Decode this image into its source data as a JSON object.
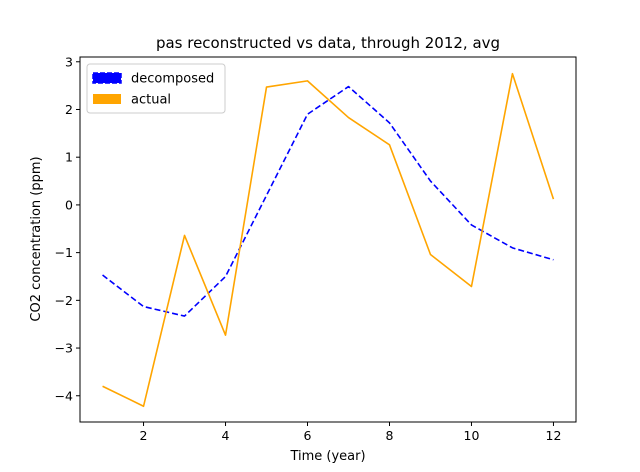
{
  "chart_data": {
    "type": "line",
    "title": "pas reconstructed vs data, through 2012, avg",
    "xlabel": "Time (year)",
    "ylabel": "CO2 concentration (ppm)",
    "xlim": [
      0.45,
      12.55
    ],
    "ylim": [
      -4.55,
      3.1
    ],
    "xticks": [
      2,
      4,
      6,
      8,
      10,
      12
    ],
    "yticks": [
      -4,
      -3,
      -2,
      -1,
      0,
      1,
      2,
      3
    ],
    "grid": false,
    "legend_position": "top-left",
    "x": [
      1,
      2,
      3,
      4,
      5,
      6,
      7,
      8,
      9,
      10,
      11,
      12
    ],
    "series": [
      {
        "name": "decomposed",
        "color": "#0000ff",
        "style": "dashed",
        "values": [
          -1.47,
          -2.13,
          -2.33,
          -1.5,
          0.2,
          1.9,
          2.48,
          1.72,
          0.5,
          -0.42,
          -0.9,
          -1.15
        ]
      },
      {
        "name": "actual",
        "color": "#ffa500",
        "style": "solid",
        "values": [
          -3.8,
          -4.22,
          -0.64,
          -2.73,
          2.47,
          2.6,
          1.83,
          1.26,
          -1.04,
          -1.71,
          2.75,
          0.12
        ]
      }
    ]
  }
}
